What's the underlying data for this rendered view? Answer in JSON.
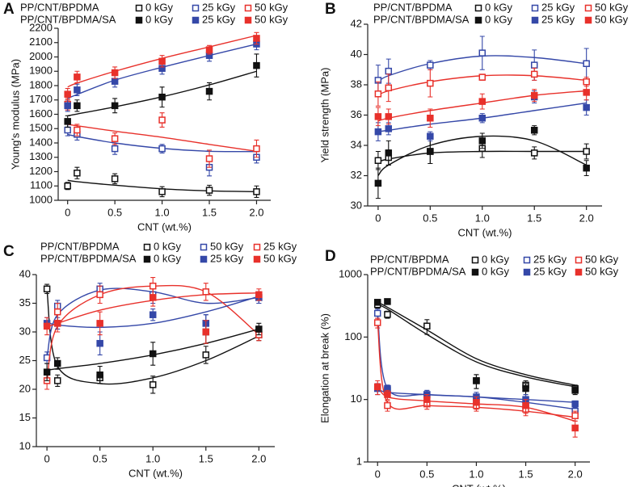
{
  "chart_data": [
    {
      "type": "scatter",
      "label": "A",
      "y_label": "Young's modulus (MPa)",
      "x_label": "CNT (wt.%)",
      "x": [
        0,
        0.1,
        0.5,
        1.0,
        1.5,
        2.0
      ],
      "xlim": [
        -0.1,
        2.15
      ],
      "xticks": [
        0,
        0.5,
        {
          "value": 1,
          "label": "1.0"
        },
        1.5,
        {
          "value": 2,
          "label": "2.0"
        }
      ],
      "ylim": [
        1000,
        2200
      ],
      "yticks": [
        1000,
        1100,
        1200,
        1300,
        1400,
        1500,
        1600,
        1700,
        1800,
        1900,
        2000,
        2100,
        2200
      ],
      "groups": [
        {
          "name": "PP/CNT/BPDMA",
          "marker": "open",
          "series": [
            {
              "name": "0 kGy",
              "color": "#111111",
              "values": [
                1100,
                1190,
                1150,
                1060,
                1070,
                1060
              ],
              "errors": [
                25,
                40,
                35,
                35,
                35,
                40
              ],
              "fit_values": [
                1140,
                1130,
                1105,
                1080,
                1066,
                1060
              ]
            },
            {
              "name": "25 kGy",
              "color": "#3548a8",
              "values": [
                1490,
                1460,
                1360,
                1360,
                1230,
                1300
              ],
              "errors": [
                40,
                40,
                40,
                30,
                60,
                40
              ],
              "fit_values": [
                1460,
                1445,
                1400,
                1362,
                1342,
                1340
              ]
            },
            {
              "name": "50 kGy",
              "color": "#e8312b",
              "values": [
                1670,
                1490,
                1430,
                1560,
                1290,
                1360
              ],
              "errors": [
                40,
                40,
                40,
                50,
                60,
                60
              ],
              "fit_values": [
                1530,
                1520,
                1482,
                1440,
                1390,
                1342
              ]
            }
          ]
        },
        {
          "name": "PP/CNT/BPDMA/SA",
          "marker": "filled",
          "series": [
            {
              "name": "0 kGy",
              "color": "#111111",
              "values": [
                1550,
                1660,
                1660,
                1720,
                1760,
                1940
              ],
              "errors": [
                40,
                40,
                50,
                70,
                60,
                80
              ],
              "fit_values": [
                1590,
                1602,
                1652,
                1722,
                1805,
                1900
              ]
            },
            {
              "name": "25 kGy",
              "color": "#3548a8",
              "values": [
                1660,
                1770,
                1830,
                1920,
                2010,
                2090
              ],
              "errors": [
                40,
                40,
                40,
                40,
                40,
                40
              ],
              "fit_values": [
                1710,
                1738,
                1838,
                1928,
                2010,
                2090
              ]
            },
            {
              "name": "50 kGy",
              "color": "#e8312b",
              "values": [
                1740,
                1860,
                1890,
                1970,
                2050,
                2130
              ],
              "errors": [
                40,
                40,
                40,
                40,
                30,
                40
              ],
              "fit_values": [
                1790,
                1818,
                1900,
                1990,
                2070,
                2150
              ]
            }
          ]
        }
      ]
    },
    {
      "type": "scatter",
      "label": "B",
      "y_label": "Yield strength (MPa)",
      "x_label": "CNT (wt.%)",
      "x": [
        0,
        0.1,
        0.5,
        1.0,
        1.5,
        2.0
      ],
      "xlim": [
        -0.1,
        2.15
      ],
      "xticks": [
        0,
        0.5,
        {
          "value": 1,
          "label": "1.0"
        },
        1.5,
        {
          "value": 2,
          "label": "2.0"
        }
      ],
      "ylim": [
        30,
        42
      ],
      "yticks": [
        30,
        32,
        34,
        36,
        38,
        40,
        42
      ],
      "groups": [
        {
          "name": "PP/CNT/BPDMA",
          "marker": "open",
          "series": [
            {
              "name": "0 kGy",
              "color": "#111111",
              "values": [
                33.0,
                33.2,
                33.6,
                33.8,
                33.5,
                33.6
              ],
              "errors": [
                0.6,
                0.5,
                0.8,
                0.6,
                0.4,
                0.5
              ],
              "fit_values": [
                32.9,
                33.1,
                33.5,
                33.6,
                33.6,
                33.6
              ]
            },
            {
              "name": "25 kGy",
              "color": "#3548a8",
              "values": [
                38.3,
                38.9,
                39.3,
                40.1,
                39.3,
                39.4
              ],
              "errors": [
                1.0,
                0.8,
                0.3,
                1.1,
                1.0,
                1.0
              ],
              "fit_values": [
                38.2,
                38.6,
                39.4,
                39.9,
                39.8,
                39.4
              ]
            },
            {
              "name": "50 kGy",
              "color": "#e8312b",
              "values": [
                37.4,
                37.8,
                38.1,
                38.5,
                38.7,
                38.2
              ],
              "errors": [
                0.8,
                0.9,
                0.9,
                0.2,
                0.4,
                0.3
              ],
              "fit_values": [
                37.3,
                37.6,
                38.2,
                38.6,
                38.6,
                38.3
              ]
            }
          ]
        },
        {
          "name": "PP/CNT/BPDMA/SA",
          "marker": "filled",
          "series": [
            {
              "name": "0 kGy",
              "color": "#111111",
              "values": [
                31.5,
                33.5,
                33.6,
                34.3,
                35.0,
                32.5
              ],
              "errors": [
                1.0,
                0.8,
                0.8,
                0.5,
                0.3,
                0.5
              ],
              "fit_values": [
                32.0,
                32.7,
                34.0,
                34.6,
                34.3,
                32.7
              ]
            },
            {
              "name": "25 kGy",
              "color": "#3548a8",
              "values": [
                34.9,
                35.1,
                34.6,
                35.8,
                37.2,
                36.5
              ],
              "errors": [
                0.6,
                0.4,
                0.3,
                0.3,
                0.4,
                0.5
              ],
              "fit_values": [
                34.9,
                35.0,
                35.4,
                35.8,
                36.3,
                36.8
              ]
            },
            {
              "name": "50 kGy",
              "color": "#e8312b",
              "values": [
                35.9,
                35.9,
                35.8,
                36.9,
                37.3,
                37.5
              ],
              "errors": [
                0.6,
                0.5,
                0.6,
                0.5,
                0.4,
                0.5
              ],
              "fit_values": [
                35.6,
                35.8,
                36.3,
                36.8,
                37.3,
                37.6
              ]
            }
          ]
        }
      ]
    },
    {
      "type": "scatter",
      "label": "C",
      "y_label": "Tensile strength (MPa)",
      "x_label": "CNT (wt.%)",
      "x": [
        0,
        0.1,
        0.5,
        1.0,
        1.5,
        2.0
      ],
      "xlim": [
        -0.1,
        2.15
      ],
      "xticks": [
        0,
        0.5,
        {
          "value": 1,
          "label": "1.0"
        },
        1.5,
        {
          "value": 2,
          "label": "2.0"
        }
      ],
      "ylim": [
        10,
        40
      ],
      "yticks": [
        10,
        15,
        20,
        25,
        30,
        35,
        40
      ],
      "groups": [
        {
          "name": "PP/CNT/BPDMA",
          "marker": "open",
          "series": [
            {
              "name": "0 kGy",
              "color": "#111111",
              "values": [
                37.5,
                21.5,
                22.0,
                20.8,
                26.0,
                29.5
              ],
              "errors": [
                0.8,
                1.0,
                1.0,
                1.5,
                1.5,
                1.0
              ],
              "fit_values": [
                37.3,
                24.0,
                21.0,
                22.0,
                25.0,
                29.3
              ]
            },
            {
              "name": "50 kGy",
              "color": "#3548a8",
              "values": [
                25.5,
                34.5,
                37.5,
                36.5,
                31.5,
                36.0
              ],
              "errors": [
                1.0,
                1.0,
                1.0,
                1.5,
                1.5,
                1.0
              ],
              "fit_values": [
                25.5,
                33.0,
                37.3,
                37.0,
                35.0,
                36.0
              ]
            },
            {
              "name": "25 kGy",
              "color": "#e8312b",
              "values": [
                21.5,
                33.5,
                36.5,
                38.0,
                37.0,
                29.5
              ],
              "errors": [
                1.5,
                1.5,
                1.5,
                1.5,
                1.5,
                1.0
              ],
              "fit_values": [
                21.3,
                31.0,
                36.5,
                38.0,
                37.0,
                29.5
              ]
            }
          ]
        },
        {
          "name": "PP/CNT/BPDMA/SA",
          "marker": "filled",
          "series": [
            {
              "name": "0 kGy",
              "color": "#111111",
              "values": [
                23.0,
                24.5,
                22.5,
                26.2,
                30.0,
                30.5
              ],
              "errors": [
                1.5,
                1.0,
                1.5,
                2.0,
                2.0,
                1.0
              ],
              "fit_values": [
                23.3,
                23.6,
                24.5,
                26.0,
                28.0,
                30.5
              ]
            },
            {
              "name": "25 kGy",
              "color": "#3548a8",
              "values": [
                31.5,
                31.5,
                28.0,
                33.0,
                31.5,
                36.0
              ],
              "errors": [
                1.0,
                1.0,
                2.0,
                1.0,
                1.5,
                1.0
              ],
              "fit_values": [
                31.8,
                31.2,
                30.8,
                31.5,
                33.5,
                36.2
              ]
            },
            {
              "name": "50 kGy",
              "color": "#e8312b",
              "values": [
                31.0,
                31.5,
                31.5,
                36.0,
                30.0,
                36.5
              ],
              "errors": [
                1.5,
                1.5,
                2.0,
                1.5,
                2.0,
                1.0
              ],
              "fit_values": [
                30.8,
                31.5,
                33.8,
                35.5,
                36.5,
                36.8
              ]
            }
          ]
        }
      ]
    },
    {
      "type": "scatter",
      "label": "D",
      "y_label": "Elongation at break (%)",
      "x_label": "CNT (wt.%)",
      "log_y": true,
      "x": [
        0,
        0.1,
        0.5,
        1.0,
        1.5,
        2.0
      ],
      "xlim": [
        -0.1,
        2.15
      ],
      "xticks": [
        0,
        0.5,
        {
          "value": 1,
          "label": "1.0"
        },
        1.5,
        {
          "value": 2,
          "label": "2.0"
        }
      ],
      "ylim": [
        1,
        1000
      ],
      "yticks": [
        1,
        10,
        100,
        1000
      ],
      "groups": [
        {
          "name": "PP/CNT/BPDMA",
          "marker": "open",
          "series": [
            {
              "name": "0 kGy",
              "color": "#111111",
              "values": [
                330,
                230,
                150,
                20,
                17,
                15
              ],
              "errors": [
                40,
                30,
                40,
                5,
                3,
                2
              ],
              "fit_values": [
                330,
                280,
                110,
                40,
                23,
                16
              ]
            },
            {
              "name": "25 kGy",
              "color": "#3548a8",
              "values": [
                240,
                14,
                12,
                10,
                8,
                6.5
              ],
              "errors": [
                40,
                2,
                2,
                2,
                1.5,
                1
              ],
              "fit_values": [
                240,
                15,
                12,
                11,
                9,
                7
              ]
            },
            {
              "name": "50 kGy",
              "color": "#e8312b",
              "values": [
                170,
                8,
                8.5,
                8,
                7,
                5.5
              ],
              "errors": [
                30,
                1.5,
                1.5,
                1.5,
                1.5,
                1
              ],
              "fit_values": [
                170,
                9,
                8,
                7.5,
                6.5,
                5.2
              ]
            }
          ]
        },
        {
          "name": "PP/CNT/BPDMA/SA",
          "marker": "filled",
          "series": [
            {
              "name": "0 kGy",
              "color": "#111111",
              "values": [
                360,
                370,
                null,
                20,
                15,
                14
              ],
              "errors": [
                30,
                20,
                null,
                5,
                3,
                2
              ],
              "fit_values": [
                360,
                300,
                130,
                45,
                25,
                17
              ]
            },
            {
              "name": "25 kGy",
              "color": "#3548a8",
              "values": [
                15,
                15,
                12,
                11,
                10,
                8.5
              ],
              "errors": [
                3,
                2,
                2,
                2,
                2,
                1
              ],
              "fit_values": [
                15,
                13,
                12,
                11,
                10,
                9
              ]
            },
            {
              "name": "50 kGy",
              "color": "#e8312b",
              "values": [
                16,
                12,
                10,
                9,
                8,
                3.5
              ],
              "errors": [
                4,
                2,
                2,
                2,
                2,
                1
              ],
              "fit_values": [
                18,
                11,
                9.5,
                8.5,
                7.5,
                4.5
              ]
            }
          ]
        }
      ]
    }
  ]
}
